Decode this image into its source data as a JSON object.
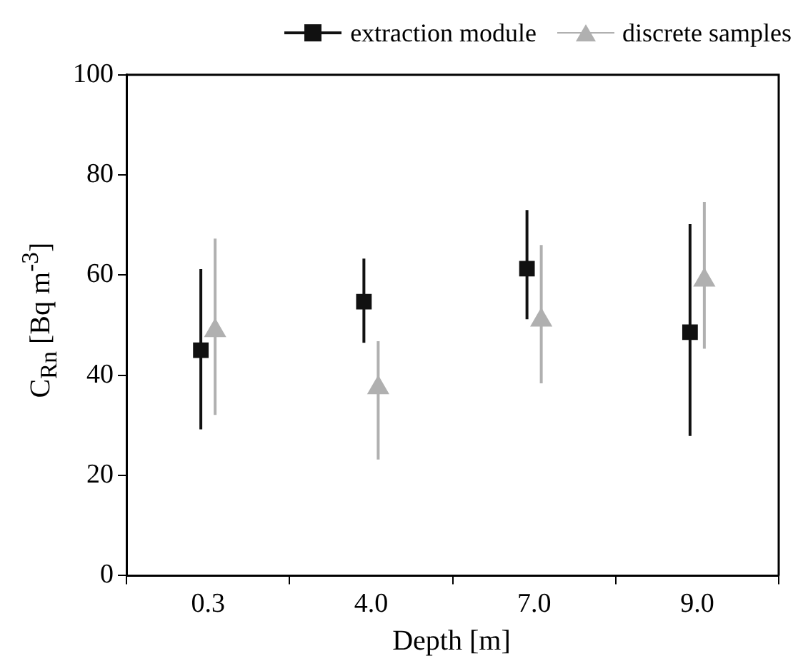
{
  "chart_data": {
    "type": "scatter",
    "xlabel": "Depth [m]",
    "ylabel": "C$_{Rn}$ [Bq m$^{-3}$]",
    "categories": [
      "0.3",
      "4.0",
      "7.0",
      "9.0"
    ],
    "series": [
      {
        "name": "extraction module",
        "color": "#111111",
        "marker": "square",
        "values": [
          45,
          54.7,
          61.3,
          48.6
        ],
        "errors": [
          [
            29.2,
            61.2
          ],
          [
            46.5,
            63.3
          ],
          [
            51.2,
            73
          ],
          [
            27.9,
            70.2
          ]
        ]
      },
      {
        "name": "discrete samples",
        "color": "#b0b0b0",
        "marker": "triangle",
        "values": [
          48.9,
          37.5,
          51,
          59
        ],
        "errors": [
          [
            32.1,
            67.3
          ],
          [
            23.2,
            46.8
          ],
          [
            38.4,
            66
          ],
          [
            45.3,
            74.6
          ]
        ]
      }
    ],
    "ylim": [
      0,
      100
    ],
    "yticks": [
      0,
      20,
      40,
      60,
      80,
      100
    ],
    "grid": false,
    "legend": "top"
  }
}
